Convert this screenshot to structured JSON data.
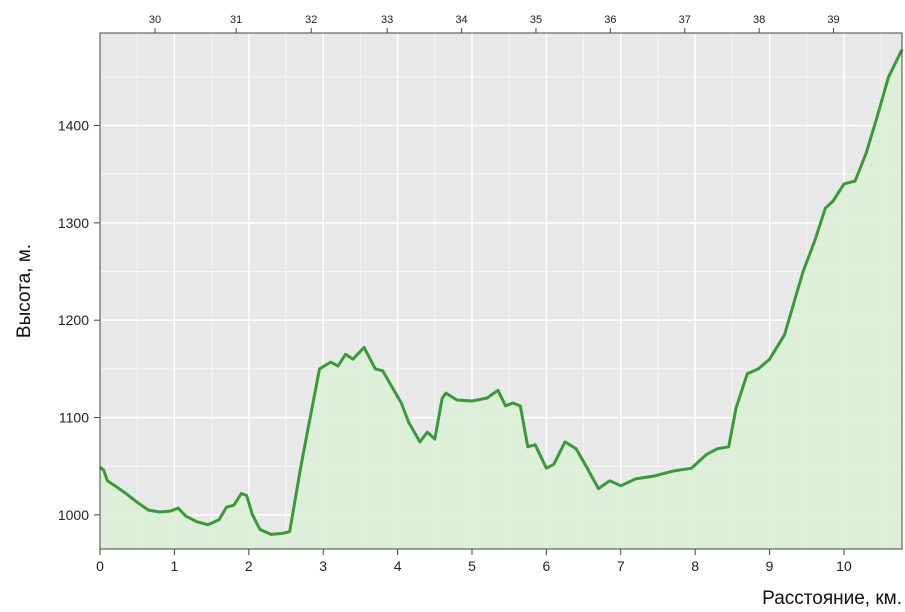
{
  "chart_data": {
    "type": "area",
    "xlabel": "Расстояние, км.",
    "ylabel": "Высота, м.",
    "xlim": [
      0,
      10.78
    ],
    "ylim": [
      965,
      1495
    ],
    "x_ticks": [
      0,
      1,
      2,
      3,
      4,
      5,
      6,
      7,
      8,
      9,
      10
    ],
    "y_ticks": [
      1000,
      1100,
      1200,
      1300,
      1400
    ],
    "top_ticks": [
      {
        "label": "30",
        "x": 0.74
      },
      {
        "label": "31",
        "x": 1.83
      },
      {
        "label": "32",
        "x": 2.84
      },
      {
        "label": "33",
        "x": 3.86
      },
      {
        "label": "34",
        "x": 4.86
      },
      {
        "label": "35",
        "x": 5.86
      },
      {
        "label": "36",
        "x": 6.86
      },
      {
        "label": "37",
        "x": 7.86
      },
      {
        "label": "38",
        "x": 8.86
      },
      {
        "label": "39",
        "x": 9.86
      }
    ],
    "grid": true,
    "colors": {
      "line": "#3a9a3a",
      "fill": "#dcefd8",
      "plot_bg": "#e8e8e8",
      "grid": "#ffffff"
    },
    "series": [
      {
        "x": [
          0.0,
          0.05,
          0.1,
          0.2,
          0.35,
          0.5,
          0.65,
          0.8,
          0.95,
          1.05,
          1.15,
          1.3,
          1.45,
          1.6,
          1.7,
          1.8,
          1.9,
          1.97,
          2.05,
          2.15,
          2.3,
          2.45,
          2.55,
          2.7,
          2.8,
          2.95,
          3.1,
          3.2,
          3.3,
          3.4,
          3.55,
          3.7,
          3.8,
          3.95,
          4.05,
          4.15,
          4.3,
          4.4,
          4.5,
          4.6,
          4.65,
          4.8,
          5.0,
          5.2,
          5.35,
          5.45,
          5.55,
          5.65,
          5.75,
          5.85,
          6.0,
          6.1,
          6.25,
          6.4,
          6.55,
          6.7,
          6.85,
          7.0,
          7.2,
          7.45,
          7.7,
          7.95,
          8.15,
          8.3,
          8.45,
          8.55,
          8.7,
          8.85,
          9.0,
          9.2,
          9.45,
          9.6,
          9.75,
          9.85,
          10.0,
          10.15,
          10.3,
          10.45,
          10.6,
          10.78
        ],
        "values": [
          1049,
          1046,
          1035,
          1030,
          1022,
          1013,
          1005,
          1003,
          1004,
          1007,
          999,
          993,
          990,
          995,
          1008,
          1010,
          1022,
          1020,
          1000,
          985,
          980,
          981,
          983,
          1050,
          1090,
          1150,
          1157,
          1153,
          1165,
          1160,
          1172,
          1150,
          1148,
          1128,
          1115,
          1095,
          1075,
          1085,
          1078,
          1120,
          1125,
          1118,
          1117,
          1120,
          1128,
          1112,
          1115,
          1112,
          1070,
          1072,
          1048,
          1052,
          1075,
          1068,
          1048,
          1027,
          1035,
          1030,
          1037,
          1040,
          1045,
          1048,
          1062,
          1068,
          1070,
          1110,
          1145,
          1150,
          1160,
          1185,
          1250,
          1280,
          1315,
          1322,
          1340,
          1343,
          1372,
          1410,
          1450,
          1478
        ]
      }
    ]
  }
}
